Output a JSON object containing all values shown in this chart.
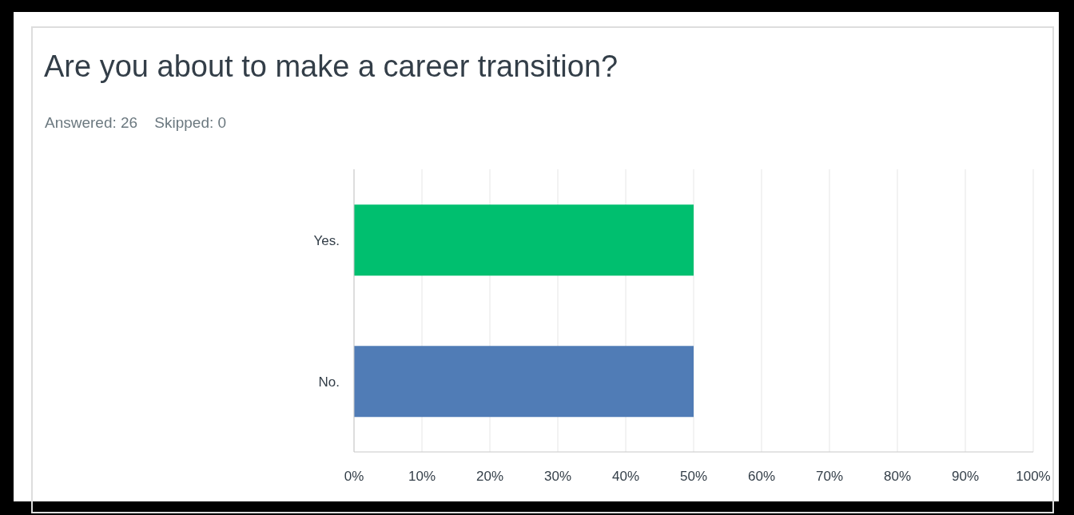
{
  "chart_data": {
    "type": "bar",
    "orientation": "horizontal",
    "title": "Are you about to make a career transition?",
    "subtitle": "Answered: 26    Skipped: 0",
    "categories": [
      "Yes.",
      "No."
    ],
    "values": [
      50,
      50
    ],
    "colors": [
      "#00bf6f",
      "#507cb6"
    ],
    "xlim": [
      0,
      100
    ],
    "xticks": [
      {
        "value": 0,
        "label": "0%"
      },
      {
        "value": 10,
        "label": "10%"
      },
      {
        "value": 20,
        "label": "20%"
      },
      {
        "value": 30,
        "label": "30%"
      },
      {
        "value": 40,
        "label": "40%"
      },
      {
        "value": 50,
        "label": "50%"
      },
      {
        "value": 60,
        "label": "60%"
      },
      {
        "value": 70,
        "label": "70%"
      },
      {
        "value": 80,
        "label": "80%"
      },
      {
        "value": 90,
        "label": "90%"
      },
      {
        "value": 100,
        "label": "100%"
      }
    ],
    "grid": "x"
  }
}
